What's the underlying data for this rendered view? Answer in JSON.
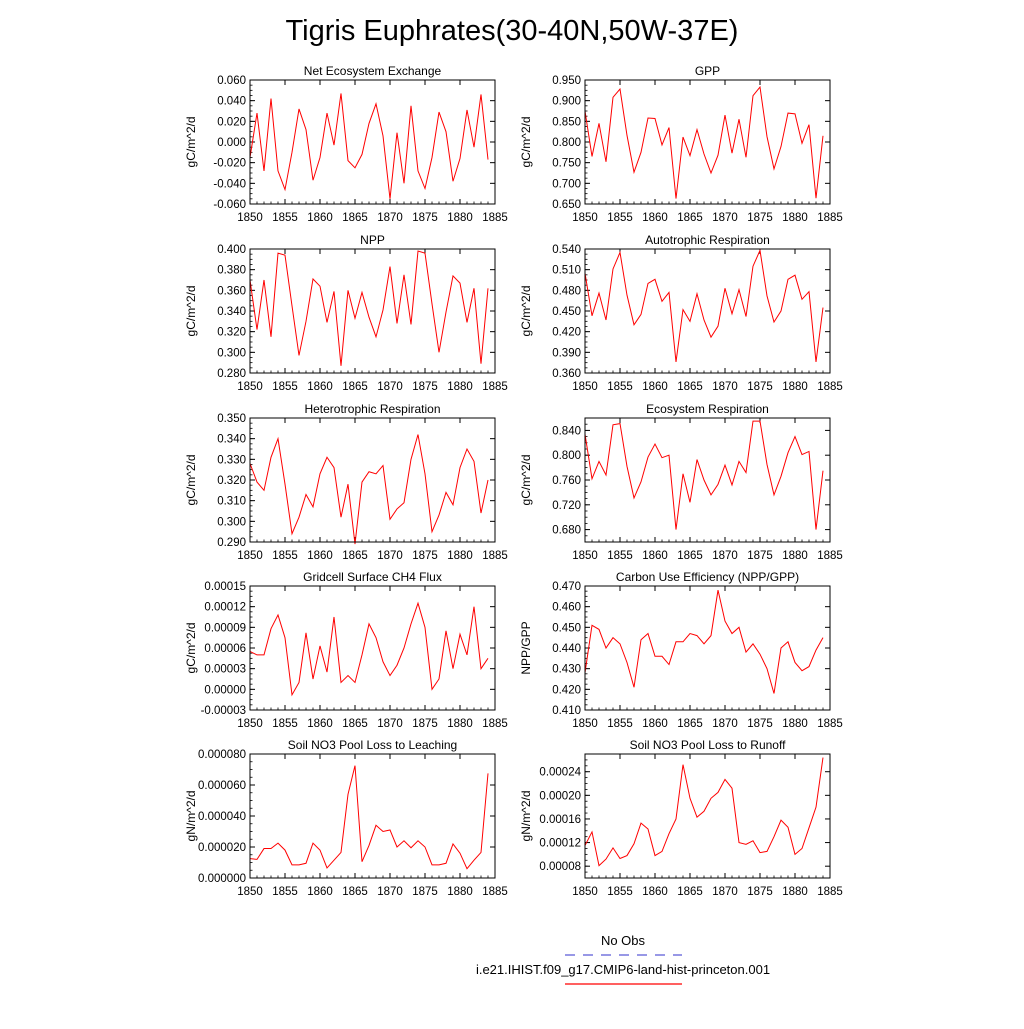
{
  "title": "Tigris Euphrates(30-40N,50W-37E)",
  "legend": {
    "entries": [
      {
        "label": "No Obs",
        "color": "#5b5bd6",
        "dashed": true
      },
      {
        "label": "i.e21.IHIST.f09_g17.CMIP6-land-hist-princeton.001",
        "color": "#ff0000",
        "dashed": false
      }
    ]
  },
  "chart_data": [
    {
      "type": "line",
      "title": "Net Ecosystem Exchange",
      "ylabel": "gC/m^2/d",
      "xlim": [
        1850,
        1885
      ],
      "ylim": [
        -0.06,
        0.06
      ],
      "xticks": [
        "1850",
        "1855",
        "1860",
        "1865",
        "1870",
        "1875",
        "1880",
        "1885"
      ],
      "yticks": [
        "-0.060",
        "-0.040",
        "-0.020",
        "0.000",
        "0.020",
        "0.040",
        "0.060"
      ],
      "color": "#ff0000",
      "values": [
        -0.015,
        0.028,
        -0.028,
        0.042,
        -0.028,
        -0.046,
        -0.01,
        0.032,
        0.012,
        -0.037,
        -0.015,
        0.028,
        -0.003,
        0.047,
        -0.018,
        -0.025,
        -0.012,
        0.018,
        0.037,
        0.006,
        -0.055,
        0.009,
        -0.04,
        0.035,
        -0.028,
        -0.045,
        -0.015,
        0.029,
        0.01,
        -0.038,
        -0.016,
        0.031,
        -0.005,
        0.046,
        -0.017
      ]
    },
    {
      "type": "line",
      "title": "GPP",
      "ylabel": "gC/m^2/d",
      "xlim": [
        1850,
        1885
      ],
      "ylim": [
        0.65,
        0.95
      ],
      "xticks": [
        "1850",
        "1855",
        "1860",
        "1865",
        "1870",
        "1875",
        "1880",
        "1885"
      ],
      "yticks": [
        "0.650",
        "0.700",
        "0.750",
        "0.800",
        "0.850",
        "0.900",
        "0.950"
      ],
      "color": "#ff0000",
      "values": [
        0.875,
        0.765,
        0.845,
        0.752,
        0.908,
        0.928,
        0.816,
        0.727,
        0.775,
        0.858,
        0.857,
        0.793,
        0.835,
        0.663,
        0.812,
        0.767,
        0.83,
        0.771,
        0.725,
        0.768,
        0.865,
        0.773,
        0.855,
        0.763,
        0.912,
        0.933,
        0.813,
        0.735,
        0.789,
        0.87,
        0.868,
        0.797,
        0.842,
        0.664,
        0.815
      ]
    },
    {
      "type": "line",
      "title": "NPP",
      "ylabel": "gC/m^2/d",
      "xlim": [
        1850,
        1885
      ],
      "ylim": [
        0.28,
        0.4
      ],
      "xticks": [
        "1850",
        "1855",
        "1860",
        "1865",
        "1870",
        "1875",
        "1880",
        "1885"
      ],
      "yticks": [
        "0.280",
        "0.300",
        "0.320",
        "0.340",
        "0.360",
        "0.380",
        "0.400"
      ],
      "color": "#ff0000",
      "values": [
        0.37,
        0.322,
        0.37,
        0.315,
        0.396,
        0.394,
        0.345,
        0.297,
        0.33,
        0.371,
        0.364,
        0.329,
        0.359,
        0.287,
        0.36,
        0.333,
        0.358,
        0.334,
        0.315,
        0.341,
        0.383,
        0.328,
        0.375,
        0.327,
        0.398,
        0.396,
        0.347,
        0.3,
        0.339,
        0.374,
        0.367,
        0.329,
        0.362,
        0.289,
        0.362
      ]
    },
    {
      "type": "line",
      "title": "Autotrophic Respiration",
      "ylabel": "gC/m^2/d",
      "xlim": [
        1850,
        1885
      ],
      "ylim": [
        0.36,
        0.54
      ],
      "xticks": [
        "1850",
        "1855",
        "1860",
        "1865",
        "1870",
        "1875",
        "1880",
        "1885"
      ],
      "yticks": [
        "0.360",
        "0.390",
        "0.420",
        "0.450",
        "0.480",
        "0.510",
        "0.540"
      ],
      "color": "#ff0000",
      "values": [
        0.505,
        0.443,
        0.476,
        0.437,
        0.511,
        0.535,
        0.473,
        0.43,
        0.445,
        0.49,
        0.496,
        0.464,
        0.477,
        0.376,
        0.452,
        0.435,
        0.475,
        0.437,
        0.412,
        0.428,
        0.483,
        0.446,
        0.481,
        0.442,
        0.515,
        0.538,
        0.472,
        0.434,
        0.45,
        0.496,
        0.502,
        0.467,
        0.478,
        0.376,
        0.455
      ]
    },
    {
      "type": "line",
      "title": "Heterotrophic Respiration",
      "ylabel": "gC/m^2/d",
      "xlim": [
        1850,
        1885
      ],
      "ylim": [
        0.29,
        0.35
      ],
      "xticks": [
        "1850",
        "1855",
        "1860",
        "1865",
        "1870",
        "1875",
        "1880",
        "1885"
      ],
      "yticks": [
        "0.290",
        "0.300",
        "0.310",
        "0.320",
        "0.330",
        "0.340",
        "0.350"
      ],
      "color": "#ff0000",
      "values": [
        0.328,
        0.319,
        0.315,
        0.331,
        0.34,
        0.318,
        0.294,
        0.302,
        0.313,
        0.307,
        0.323,
        0.331,
        0.326,
        0.302,
        0.318,
        0.289,
        0.319,
        0.324,
        0.323,
        0.327,
        0.301,
        0.306,
        0.309,
        0.33,
        0.342,
        0.323,
        0.295,
        0.303,
        0.314,
        0.308,
        0.326,
        0.335,
        0.329,
        0.304,
        0.32
      ]
    },
    {
      "type": "line",
      "title": "Ecosystem Respiration",
      "ylabel": "gC/m^2/d",
      "xlim": [
        1850,
        1885
      ],
      "ylim": [
        0.66,
        0.86
      ],
      "xticks": [
        "1850",
        "1855",
        "1860",
        "1865",
        "1870",
        "1875",
        "1880",
        "1885"
      ],
      "yticks": [
        "0.680",
        "0.720",
        "0.760",
        "0.800",
        "0.840"
      ],
      "color": "#ff0000",
      "values": [
        0.834,
        0.762,
        0.79,
        0.768,
        0.849,
        0.851,
        0.782,
        0.731,
        0.757,
        0.797,
        0.818,
        0.796,
        0.8,
        0.68,
        0.77,
        0.724,
        0.793,
        0.76,
        0.736,
        0.753,
        0.784,
        0.752,
        0.79,
        0.772,
        0.855,
        0.855,
        0.785,
        0.736,
        0.766,
        0.804,
        0.83,
        0.801,
        0.806,
        0.68,
        0.775
      ]
    },
    {
      "type": "line",
      "title": "Gridcell Surface CH4 Flux",
      "ylabel": "gC/m^2/d",
      "xlim": [
        1850,
        1885
      ],
      "ylim": [
        -3e-05,
        0.00015
      ],
      "xticks": [
        "1850",
        "1855",
        "1860",
        "1865",
        "1870",
        "1875",
        "1880",
        "1885"
      ],
      "yticks": [
        "-0.00003",
        "0.00000",
        "0.00003",
        "0.00006",
        "0.00009",
        "0.00012",
        "0.00015"
      ],
      "color": "#ff0000",
      "values": [
        5.5e-05,
        5e-05,
        5e-05,
        8.8e-05,
        0.000108,
        7.5e-05,
        -8e-06,
        1e-05,
        8.2e-05,
        1.5e-05,
        6.3e-05,
        2.5e-05,
        0.000105,
        1e-05,
        2e-05,
        1e-05,
        5e-05,
        9.5e-05,
        7.5e-05,
        4e-05,
        2e-05,
        3.5e-05,
        6e-05,
        9.5e-05,
        0.000125,
        9e-05,
        0.0,
        1.5e-05,
        8.5e-05,
        3e-05,
        8e-05,
        5e-05,
        0.00012,
        3e-05,
        4.5e-05
      ]
    },
    {
      "type": "line",
      "title": "Carbon Use Efficiency (NPP/GPP)",
      "ylabel": "NPP/GPP",
      "xlim": [
        1850,
        1885
      ],
      "ylim": [
        0.41,
        0.47
      ],
      "xticks": [
        "1850",
        "1855",
        "1860",
        "1865",
        "1870",
        "1875",
        "1880",
        "1885"
      ],
      "yticks": [
        "0.410",
        "0.420",
        "0.430",
        "0.440",
        "0.450",
        "0.460",
        "0.470"
      ],
      "color": "#ff0000",
      "values": [
        0.428,
        0.451,
        0.449,
        0.44,
        0.445,
        0.442,
        0.433,
        0.421,
        0.444,
        0.447,
        0.436,
        0.436,
        0.432,
        0.443,
        0.443,
        0.447,
        0.446,
        0.442,
        0.446,
        0.468,
        0.453,
        0.447,
        0.45,
        0.438,
        0.442,
        0.437,
        0.43,
        0.418,
        0.44,
        0.443,
        0.433,
        0.429,
        0.431,
        0.439,
        0.445
      ]
    },
    {
      "type": "line",
      "title": "Soil NO3 Pool Loss to Leaching",
      "ylabel": "gN/m^2/d",
      "xlim": [
        1850,
        1885
      ],
      "ylim": [
        0,
        8e-05
      ],
      "xticks": [
        "1850",
        "1855",
        "1860",
        "1865",
        "1870",
        "1875",
        "1880",
        "1885"
      ],
      "yticks": [
        "0.000000",
        "0.000020",
        "0.000040",
        "0.000060",
        "0.000080"
      ],
      "color": "#ff0000",
      "values": [
        1.25e-05,
        1.2e-05,
        1.9e-05,
        1.9e-05,
        2.25e-05,
        1.8e-05,
        8.5e-06,
        8.5e-06,
        9.5e-06,
        2.25e-05,
        1.8e-05,
        6.5e-06,
        1.15e-05,
        1.65e-05,
        5.4e-05,
        7.25e-05,
        1.05e-05,
        2.1e-05,
        3.4e-05,
        3e-05,
        3.1e-05,
        2e-05,
        2.4e-05,
        1.95e-05,
        2.4e-05,
        2e-05,
        8.5e-06,
        8.5e-06,
        9.5e-06,
        2.2e-05,
        1.6e-05,
        6e-06,
        1.15e-05,
        1.65e-05,
        6.75e-05
      ]
    },
    {
      "type": "line",
      "title": "Soil NO3 Pool Loss to Runoff",
      "ylabel": "gN/m^2/d",
      "xlim": [
        1850,
        1885
      ],
      "ylim": [
        6e-05,
        0.00027
      ],
      "xticks": [
        "1850",
        "1855",
        "1860",
        "1865",
        "1870",
        "1875",
        "1880",
        "1885"
      ],
      "yticks": [
        "0.00008",
        "0.00012",
        "0.00016",
        "0.00020",
        "0.00024"
      ],
      "color": "#ff0000",
      "values": [
        0.000115,
        0.000138,
        8.1e-05,
        9.2e-05,
        0.000111,
        9.3e-05,
        9.8e-05,
        0.000118,
        0.000153,
        0.000143,
        9.8e-05,
        0.000105,
        0.000135,
        0.00016,
        0.000252,
        0.000195,
        0.000163,
        0.000173,
        0.000195,
        0.000205,
        0.000227,
        0.000212,
        0.00012,
        0.000117,
        0.000123,
        0.000103,
        0.000105,
        0.00013,
        0.000158,
        0.000146,
        0.0001,
        0.00011,
        0.000145,
        0.00018,
        0.000264
      ]
    }
  ]
}
